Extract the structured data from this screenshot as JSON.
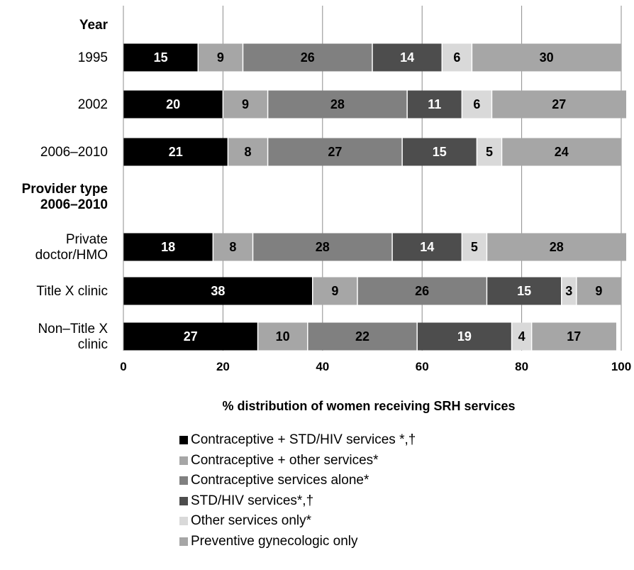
{
  "chart_data": {
    "type": "bar",
    "orientation": "horizontal",
    "stacked": true,
    "xlabel": "% distribution of women receiving SRH services",
    "xlim": [
      0,
      100
    ],
    "xticks": [
      "0",
      "20",
      "40",
      "60",
      "80",
      "100"
    ],
    "grid": "vertical",
    "legend_position": "bottom",
    "group_headers": [
      "Year",
      "Provider type\n2006–2010"
    ],
    "categories": [
      "1995",
      "2002",
      "2006–2010",
      "Private\ndoctor/HMO",
      "Title X clinic",
      "Non–Title X\nclinic"
    ],
    "series": [
      {
        "name": "Contraceptive + STD/HIV services *,†",
        "color": "#000000",
        "label_color": "#ffffff",
        "values": [
          15,
          20,
          21,
          18,
          38,
          27
        ]
      },
      {
        "name": "Contraceptive + other services*",
        "color": "#a6a6a6",
        "label_color": "#000000",
        "values": [
          9,
          9,
          8,
          8,
          9,
          10
        ]
      },
      {
        "name": "Contraceptive services alone*",
        "color": "#808080",
        "label_color": "#000000",
        "values": [
          26,
          28,
          27,
          28,
          26,
          22
        ]
      },
      {
        "name": "STD/HIV services*,†",
        "color": "#4d4d4d",
        "label_color": "#ffffff",
        "values": [
          14,
          11,
          15,
          14,
          15,
          19
        ]
      },
      {
        "name": "Other services only*",
        "color": "#d9d9d9",
        "label_color": "#000000",
        "values": [
          6,
          6,
          5,
          5,
          3,
          4
        ]
      },
      {
        "name": "Preventive gynecologic only",
        "color": "#a6a6a6",
        "label_color": "#000000",
        "values": [
          30,
          27,
          24,
          28,
          9,
          17
        ]
      }
    ]
  }
}
